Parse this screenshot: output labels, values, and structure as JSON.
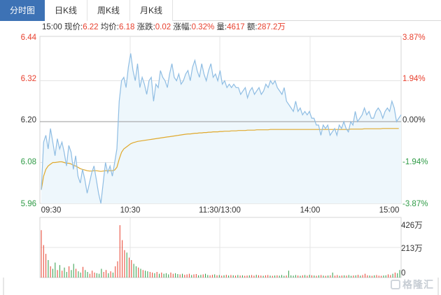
{
  "tabs": [
    {
      "label": "分时图",
      "active": true
    },
    {
      "label": "日K线",
      "active": false
    },
    {
      "label": "周K线",
      "active": false
    },
    {
      "label": "月K线",
      "active": false
    }
  ],
  "info": {
    "time": "15:00",
    "price_label": "现价:",
    "price": "6.22",
    "avg_label": "均价:",
    "avg": "6.18",
    "change_label": "涨跌:",
    "change": "0.02",
    "pct_label": "涨幅:",
    "pct": "0.32%",
    "vol_label": "量:",
    "vol": "4617",
    "amount_label": "额:",
    "amount": "287.2万"
  },
  "watermark": "格隆汇",
  "colors": {
    "up": "#e8402e",
    "down": "#2f9b46",
    "price_line": "#8fbde3",
    "price_fill": "#eef7fc",
    "avg_line": "#e0a92c",
    "grid": "#e4e4e4"
  },
  "chart_data": {
    "type": "line",
    "price_axis": {
      "left_ticks": [
        "6.44",
        "6.32",
        "6.20",
        "6.08",
        "5.96"
      ],
      "right_ticks": [
        "3.87%",
        "1.94%",
        "0.00%",
        "-1.94%",
        "-3.87%"
      ],
      "ylim": [
        5.96,
        6.44
      ],
      "prev_close": 6.2
    },
    "time_ticks": [
      "09:30",
      "10:30",
      "11:30/13:00",
      "14:00",
      "15:00"
    ],
    "volume_axis": {
      "ticks": [
        "426万",
        "213万",
        "0"
      ],
      "ylim": [
        0,
        426
      ]
    },
    "series": [
      {
        "name": "现价",
        "values": [
          6.0,
          6.14,
          6.16,
          6.12,
          6.18,
          6.14,
          6.1,
          6.15,
          6.12,
          6.14,
          6.11,
          6.07,
          6.13,
          6.11,
          6.06,
          6.1,
          6.04,
          6.02,
          6.06,
          6.03,
          5.99,
          6.02,
          6.05,
          6.07,
          6.03,
          5.99,
          5.96,
          6.02,
          6.08,
          6.05,
          6.07,
          6.04,
          6.08,
          6.12,
          6.26,
          6.32,
          6.33,
          6.3,
          6.36,
          6.4,
          6.35,
          6.32,
          6.37,
          6.3,
          6.33,
          6.31,
          6.28,
          6.32,
          6.33,
          6.26,
          6.31,
          6.3,
          6.35,
          6.33,
          6.32,
          6.3,
          6.34,
          6.37,
          6.33,
          6.32,
          6.34,
          6.31,
          6.32,
          6.34,
          6.35,
          6.32,
          6.36,
          6.38,
          6.35,
          6.33,
          6.37,
          6.34,
          6.32,
          6.35,
          6.37,
          6.33,
          6.34,
          6.32,
          6.35,
          6.31,
          6.32,
          6.3,
          6.31,
          6.3,
          6.31,
          6.3,
          6.3,
          6.28,
          6.29,
          6.3,
          6.27,
          6.29,
          6.3,
          6.28,
          6.29,
          6.3,
          6.28,
          6.29,
          6.31,
          6.3,
          6.32,
          6.31,
          6.32,
          6.3,
          6.29,
          6.28,
          6.3,
          6.26,
          6.25,
          6.24,
          6.23,
          6.26,
          6.23,
          6.24,
          6.22,
          6.23,
          6.22,
          6.23,
          6.21,
          6.21,
          6.19,
          6.19,
          6.16,
          6.19,
          6.18,
          6.19,
          6.16,
          6.17,
          6.18,
          6.16,
          6.19,
          6.18,
          6.2,
          6.18,
          6.17,
          6.2,
          6.19,
          6.23,
          6.2,
          6.21,
          6.22,
          6.24,
          6.22,
          6.23,
          6.21,
          6.21,
          6.23,
          6.24,
          6.23,
          6.21,
          6.23,
          6.24,
          6.23,
          6.26,
          6.24,
          6.2,
          6.21,
          6.22
        ]
      },
      {
        "name": "均价",
        "values": [
          6.0,
          6.04,
          6.06,
          6.07,
          6.075,
          6.08,
          6.08,
          6.081,
          6.082,
          6.082,
          6.08,
          6.078,
          6.078,
          6.076,
          6.072,
          6.07,
          6.066,
          6.062,
          6.06,
          6.058,
          6.056,
          6.055,
          6.055,
          6.056,
          6.056,
          6.055,
          6.054,
          6.055,
          6.056,
          6.056,
          6.056,
          6.056,
          6.058,
          6.066,
          6.09,
          6.11,
          6.12,
          6.125,
          6.13,
          6.135,
          6.138,
          6.14,
          6.142,
          6.143,
          6.144,
          6.145,
          6.146,
          6.147,
          6.148,
          6.149,
          6.15,
          6.151,
          6.152,
          6.153,
          6.154,
          6.155,
          6.156,
          6.157,
          6.158,
          6.159,
          6.16,
          6.161,
          6.162,
          6.163,
          6.164,
          6.164,
          6.165,
          6.166,
          6.166,
          6.167,
          6.167,
          6.168,
          6.168,
          6.169,
          6.169,
          6.17,
          6.17,
          6.17,
          6.171,
          6.171,
          6.172,
          6.172,
          6.172,
          6.173,
          6.173,
          6.173,
          6.174,
          6.174,
          6.174,
          6.174,
          6.175,
          6.175,
          6.175,
          6.175,
          6.176,
          6.176,
          6.176,
          6.176,
          6.176,
          6.176,
          6.177,
          6.177,
          6.177,
          6.177,
          6.177,
          6.177,
          6.177,
          6.177,
          6.177,
          6.177,
          6.177,
          6.177,
          6.177,
          6.177,
          6.177,
          6.177,
          6.177,
          6.177,
          6.177,
          6.177,
          6.177,
          6.177,
          6.177,
          6.177,
          6.177,
          6.177,
          6.177,
          6.177,
          6.177,
          6.177,
          6.177,
          6.177,
          6.177,
          6.177,
          6.177,
          6.178,
          6.178,
          6.178,
          6.178,
          6.178,
          6.178,
          6.179,
          6.179,
          6.179,
          6.179,
          6.179,
          6.179,
          6.179,
          6.179,
          6.18,
          6.18,
          6.18,
          6.18,
          6.18,
          6.18,
          6.18,
          6.18
        ]
      }
    ],
    "volume": [
      380,
      260,
      190,
      140,
      90,
      70,
      120,
      60,
      100,
      55,
      80,
      45,
      90,
      60,
      110,
      70,
      50,
      40,
      85,
      60,
      45,
      30,
      55,
      40,
      35,
      30,
      70,
      45,
      60,
      35,
      50,
      40,
      90,
      130,
      420,
      300,
      220,
      200,
      160,
      140,
      110,
      90,
      80,
      70,
      60,
      55,
      50,
      45,
      40,
      35,
      45,
      30,
      40,
      30,
      35,
      25,
      40,
      30,
      35,
      28,
      25,
      30,
      22,
      25,
      30,
      20,
      25,
      28,
      18,
      22,
      25,
      30,
      20,
      18,
      22,
      25,
      18,
      20,
      15,
      18,
      22,
      16,
      20,
      18,
      15,
      20,
      16,
      18,
      14,
      16,
      18,
      20,
      15,
      22,
      18,
      16,
      14,
      18,
      20,
      15,
      14,
      16,
      18,
      15,
      20,
      14,
      16,
      55,
      18,
      15,
      20,
      16,
      14,
      18,
      20,
      15,
      22,
      18,
      16,
      14,
      18,
      20,
      15,
      14,
      16,
      18,
      40,
      15,
      20,
      14,
      16,
      18,
      15,
      20,
      14,
      16,
      18,
      22,
      15,
      20,
      30,
      18,
      16,
      14,
      18,
      20,
      15,
      14,
      16,
      18,
      25,
      20,
      30,
      40,
      35,
      60
    ]
  }
}
